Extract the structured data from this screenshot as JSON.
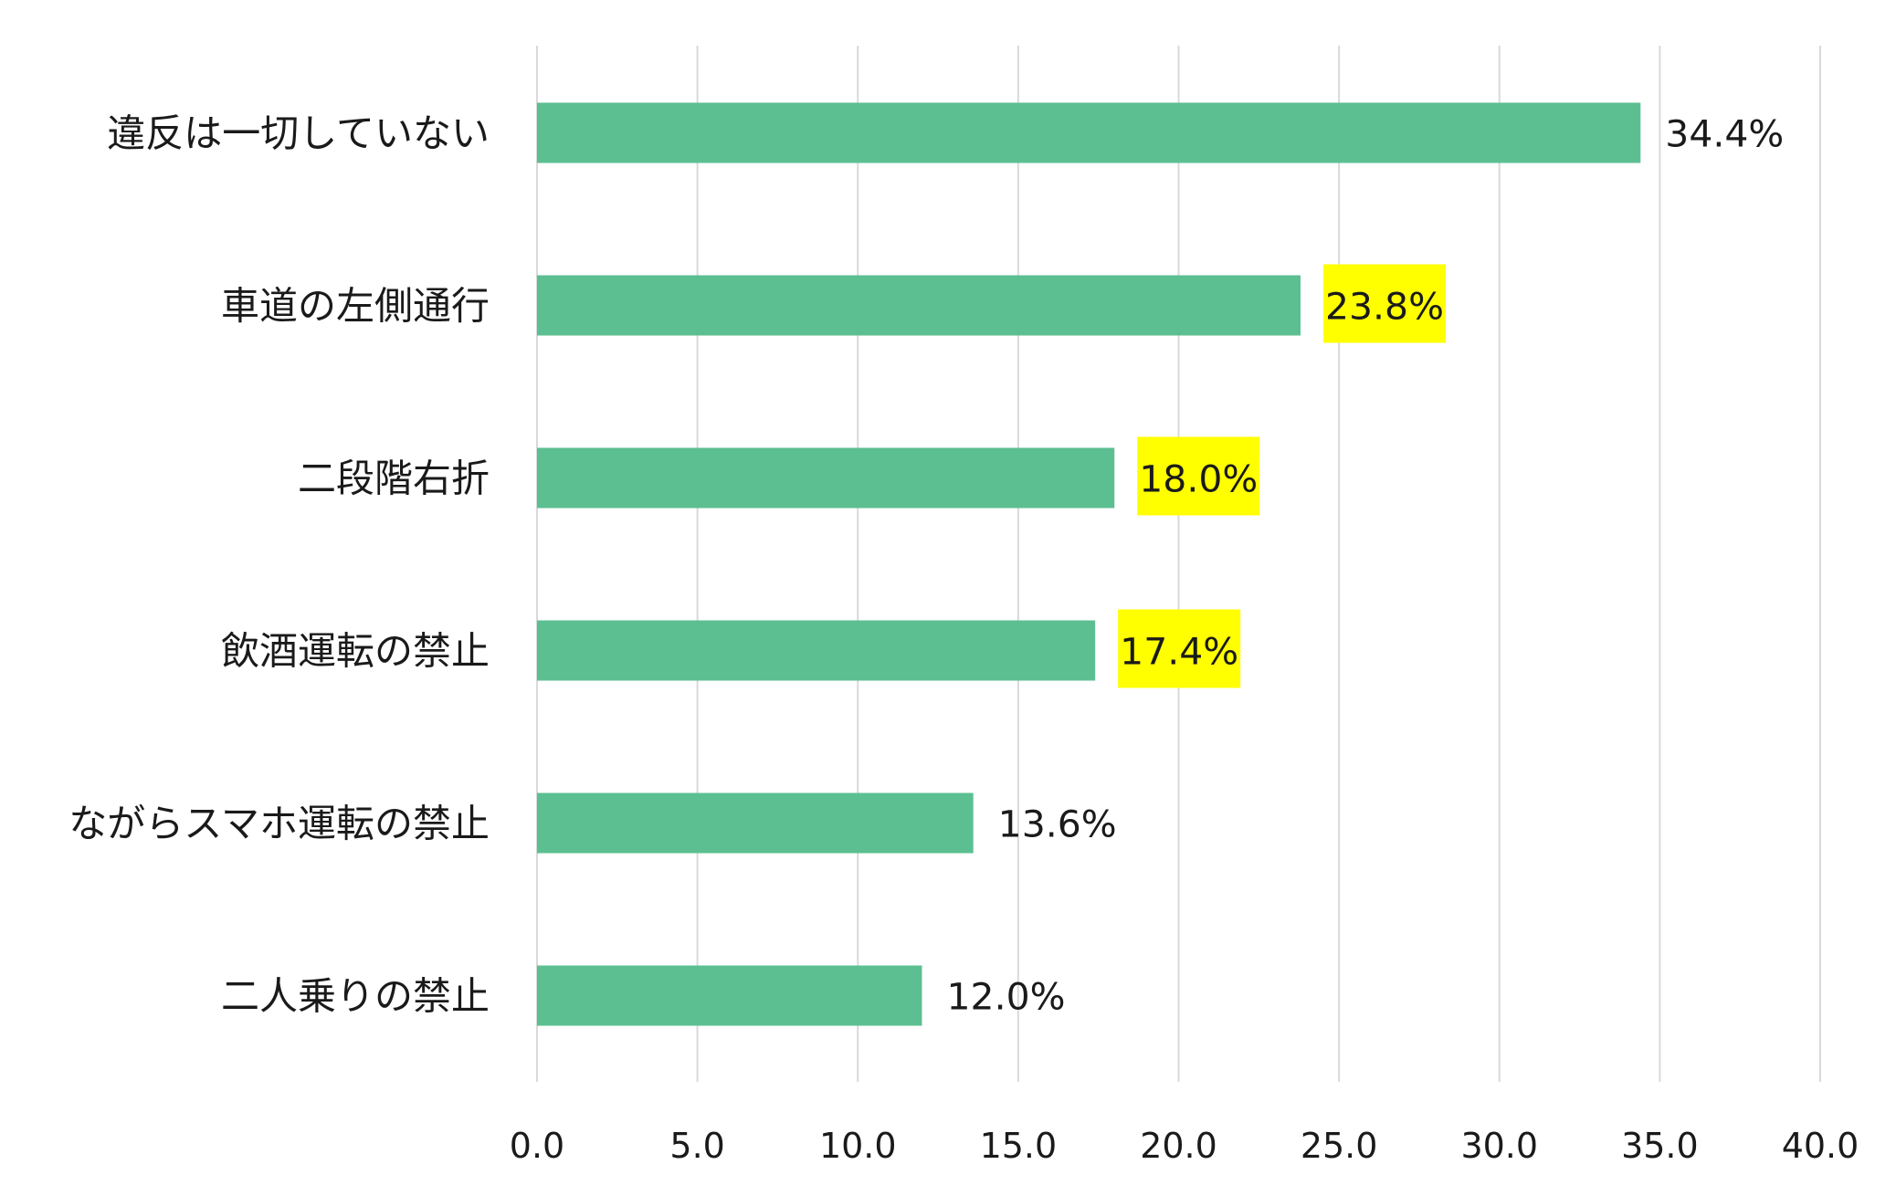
{
  "chart_data": {
    "type": "bar",
    "orientation": "horizontal",
    "categories": [
      "違反は一切していない",
      "車道の左側通行",
      "二段階右折",
      "飲酒運転の禁止",
      "ながらスマホ運転の禁止",
      "二人乗りの禁止"
    ],
    "values": [
      34.4,
      23.8,
      18.0,
      17.4,
      13.6,
      12.0
    ],
    "data_labels": [
      "34.4%",
      "23.8%",
      "18.0%",
      "17.4%",
      "13.6%",
      "12.0%"
    ],
    "highlighted_labels": [
      false,
      true,
      true,
      true,
      false,
      false
    ],
    "x_ticks": [
      "0.0",
      "5.0",
      "10.0",
      "15.0",
      "20.0",
      "25.0",
      "30.0",
      "35.0",
      "40.0"
    ],
    "xlim": [
      0,
      40
    ],
    "grid": "vertical",
    "legend": "none",
    "colors": {
      "bar": "#5cbf91",
      "highlight": "#ffff00",
      "grid": "#d9d9d9"
    }
  }
}
